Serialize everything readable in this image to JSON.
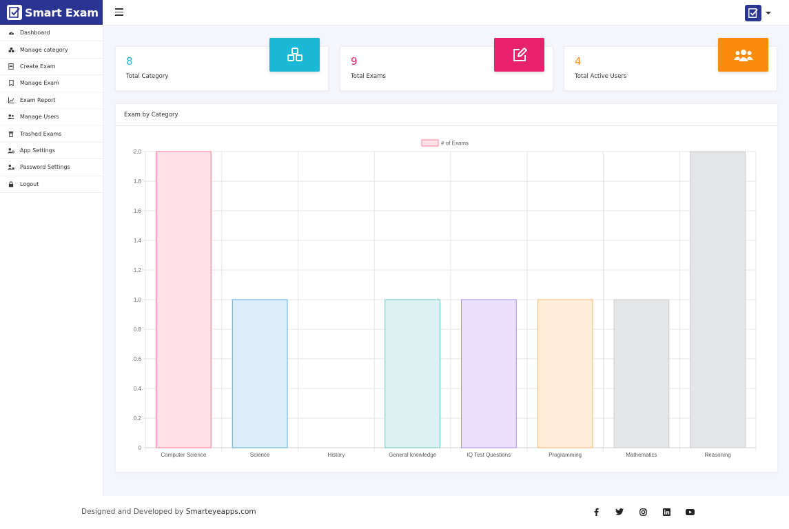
{
  "app": {
    "name": "Smart Exam"
  },
  "sidebar": {
    "items": [
      {
        "label": "Dashboard",
        "icon": "dashboard-icon"
      },
      {
        "label": "Manage category",
        "icon": "category-icon"
      },
      {
        "label": "Create Exam",
        "icon": "create-exam-icon"
      },
      {
        "label": "Manage Exam",
        "icon": "bookmark-icon"
      },
      {
        "label": "Exam Report",
        "icon": "report-chart-icon"
      },
      {
        "label": "Manage Users",
        "icon": "users-icon"
      },
      {
        "label": "Trashed Exams",
        "icon": "trash-icon"
      },
      {
        "label": "App Settings",
        "icon": "user-gear-icon"
      },
      {
        "label": "Password Settings",
        "icon": "user-key-icon"
      },
      {
        "label": "Logout",
        "icon": "lock-icon"
      }
    ]
  },
  "stats": [
    {
      "value": "8",
      "label": "Total Category",
      "color": "#1ab8d4",
      "icon": "cubes-icon"
    },
    {
      "value": "9",
      "label": "Total Exams",
      "color": "#e8216c",
      "icon": "edit-icon"
    },
    {
      "value": "4",
      "label": "Total Active Users",
      "color": "#fb8b0c",
      "icon": "users-icon"
    }
  ],
  "chart_card": {
    "title": "Exam by Category"
  },
  "chart_data": {
    "type": "bar",
    "categories": [
      "Computer Science",
      "Science",
      "History",
      "General knowledge",
      "IQ Test Questions",
      "Programming",
      "Mathematics",
      "Reasoning"
    ],
    "series": [
      {
        "name": "# of Exams",
        "values": [
          2,
          1,
          0,
          1,
          1,
          1,
          1,
          2
        ]
      }
    ],
    "ylim": [
      0,
      2.0
    ],
    "yticks": [
      "0",
      "0.2",
      "0.4",
      "0.6",
      "0.8",
      "1.0",
      "1.2",
      "1.4",
      "1.6",
      "1.8",
      "2.0"
    ],
    "bar_fills": [
      "#ffe0e6",
      "#dbecf8",
      "#fff4de",
      "#dbf2f2",
      "#ebe0ff",
      "#ffecd9",
      "#e4e5e7",
      "#e4e5e7"
    ],
    "bar_strokes": [
      "#ff7c97",
      "#5ca8dc",
      "#ffcd56",
      "#6fc7c7",
      "#a78bf0",
      "#ffb470",
      "#c9cbcf",
      "#c9cbcf"
    ],
    "legend": "top",
    "grid": true
  },
  "footer": {
    "prefix": "Designed and Developed by ",
    "link": "Smarteyeapps.com",
    "social": [
      "facebook-icon",
      "twitter-icon",
      "instagram-icon",
      "linkedin-icon",
      "youtube-icon"
    ]
  }
}
